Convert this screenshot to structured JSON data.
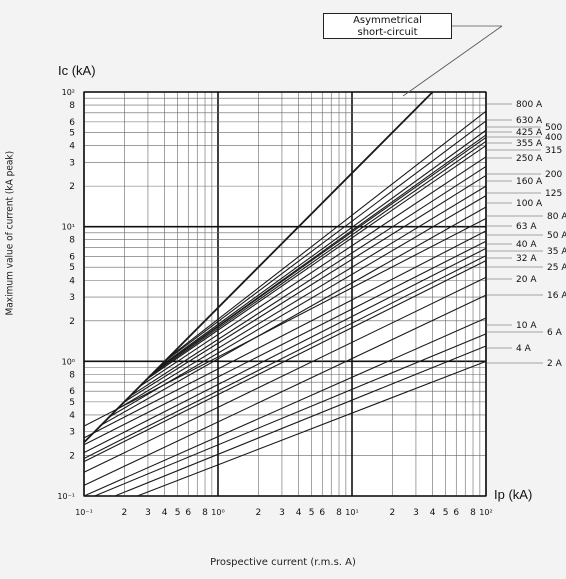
{
  "ylabel_outer": "Maximum value of current (kA peak)",
  "xlabel_outer": "Prospective current (r.m.s. A)",
  "callout": {
    "line1": "Asymmetrical",
    "line2": "short-circuit"
  },
  "chart_data": {
    "type": "line",
    "x_scale": "log",
    "y_scale": "log",
    "xlim": [
      0.1,
      100
    ],
    "ylim": [
      0.1,
      100
    ],
    "grid": true,
    "y_axis_title": "Ic (kA)",
    "x_axis_title": "Ip (kA)",
    "x_tick_labels": [
      "10⁻¹",
      "2",
      "3",
      "4",
      "5",
      "6",
      "8",
      "10⁰",
      "2",
      "3",
      "4",
      "5",
      "6",
      "8",
      "10¹",
      "2",
      "3",
      "4",
      "5",
      "6",
      "8",
      "10²"
    ],
    "y_tick_labels": [
      "10²",
      "8",
      "6",
      "5",
      "4",
      "3",
      "2",
      "10¹",
      "8",
      "6",
      "5",
      "4",
      "3",
      "2",
      "10⁰",
      "8",
      "6",
      "5",
      "4",
      "3",
      "2",
      "10⁻¹"
    ],
    "series": [
      {
        "name": "Asymmetrical short-circuit",
        "points": [
          [
            0.1,
            0.25
          ],
          [
            40,
            100
          ]
        ]
      },
      {
        "name": "800 A",
        "points": [
          [
            0.42,
            1.05
          ],
          [
            100,
            72
          ]
        ]
      },
      {
        "name": "630 A",
        "points": [
          [
            0.39,
            0.98
          ],
          [
            100,
            61
          ]
        ]
      },
      {
        "name": "500",
        "points": [
          [
            0.36,
            0.9
          ],
          [
            100,
            52
          ]
        ]
      },
      {
        "name": "425 A",
        "points": [
          [
            0.34,
            0.85
          ],
          [
            100,
            48
          ]
        ]
      },
      {
        "name": "400",
        "points": [
          [
            0.33,
            0.83
          ],
          [
            100,
            46
          ]
        ]
      },
      {
        "name": "355 A",
        "points": [
          [
            0.31,
            0.78
          ],
          [
            100,
            43
          ]
        ]
      },
      {
        "name": "315",
        "points": [
          [
            0.29,
            0.73
          ],
          [
            100,
            40
          ]
        ]
      },
      {
        "name": "250 A",
        "points": [
          [
            0.26,
            0.65
          ],
          [
            100,
            33
          ]
        ]
      },
      {
        "name": "200",
        "points": [
          [
            0.22,
            0.55
          ],
          [
            100,
            28
          ]
        ]
      },
      {
        "name": "160 A",
        "points": [
          [
            0.2,
            0.5
          ],
          [
            100,
            24
          ]
        ]
      },
      {
        "name": "125",
        "points": [
          [
            0.17,
            0.43
          ],
          [
            100,
            20
          ]
        ]
      },
      {
        "name": "100 A",
        "points": [
          [
            0.15,
            0.38
          ],
          [
            100,
            17
          ]
        ]
      },
      {
        "name": "80 A",
        "points": [
          [
            0.13,
            0.33
          ],
          [
            100,
            14
          ]
        ]
      },
      {
        "name": "63 A",
        "points": [
          [
            0.1,
            0.33
          ],
          [
            100,
            11.5
          ]
        ]
      },
      {
        "name": "50 A",
        "points": [
          [
            0.1,
            0.27
          ],
          [
            100,
            9.3
          ]
        ]
      },
      {
        "name": "40 A",
        "points": [
          [
            0.1,
            0.24
          ],
          [
            100,
            7.8
          ]
        ]
      },
      {
        "name": "35 A",
        "points": [
          [
            0.1,
            0.21
          ],
          [
            100,
            6.9
          ]
        ]
      },
      {
        "name": "32 A",
        "points": [
          [
            0.1,
            0.19
          ],
          [
            100,
            6.1
          ]
        ]
      },
      {
        "name": "25 A",
        "points": [
          [
            0.1,
            0.18
          ],
          [
            100,
            5.6
          ]
        ]
      },
      {
        "name": "20 A",
        "points": [
          [
            0.1,
            0.15
          ],
          [
            100,
            4.2
          ]
        ]
      },
      {
        "name": "16 A",
        "points": [
          [
            0.1,
            0.12
          ],
          [
            100,
            3.1
          ]
        ]
      },
      {
        "name": "10 A",
        "points": [
          [
            0.1,
            0.1
          ],
          [
            100,
            2.1
          ]
        ]
      },
      {
        "name": "6 A",
        "points": [
          [
            0.12,
            0.1
          ],
          [
            100,
            1.6
          ]
        ]
      },
      {
        "name": "4 A",
        "points": [
          [
            0.17,
            0.1
          ],
          [
            100,
            1.3
          ]
        ]
      },
      {
        "name": "2 A",
        "points": [
          [
            0.25,
            0.1
          ],
          [
            100,
            1.0
          ]
        ]
      }
    ],
    "line_color": "#1a1a1a",
    "grid_color": "#555555",
    "background": "#ffffff"
  }
}
